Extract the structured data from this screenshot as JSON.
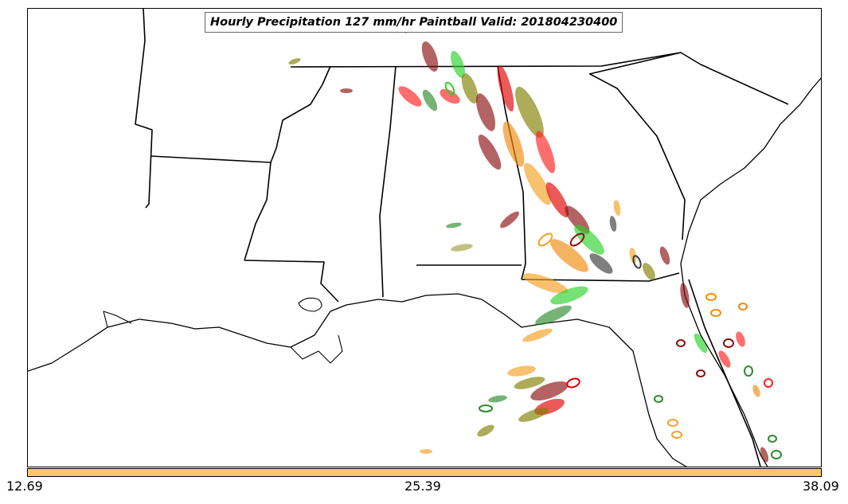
{
  "title": "Hourly Precipitation 127 mm/hr Paintball Valid: 201804230400",
  "colorbar": {
    "color": "#fec964",
    "tick_labels": [
      "12.69",
      "25.39",
      "38.09"
    ]
  },
  "member_colors": [
    "#8b0f0f",
    "#e00000",
    "#ff2020",
    "#ef8a0c",
    "#f4a020",
    "#2e8b2e",
    "#2ad22a",
    "#808000",
    "#a0a040",
    "#3a3a3a",
    "#c86464"
  ],
  "map": {
    "region": "Southeastern United States",
    "coastline_color": "#000000"
  }
}
